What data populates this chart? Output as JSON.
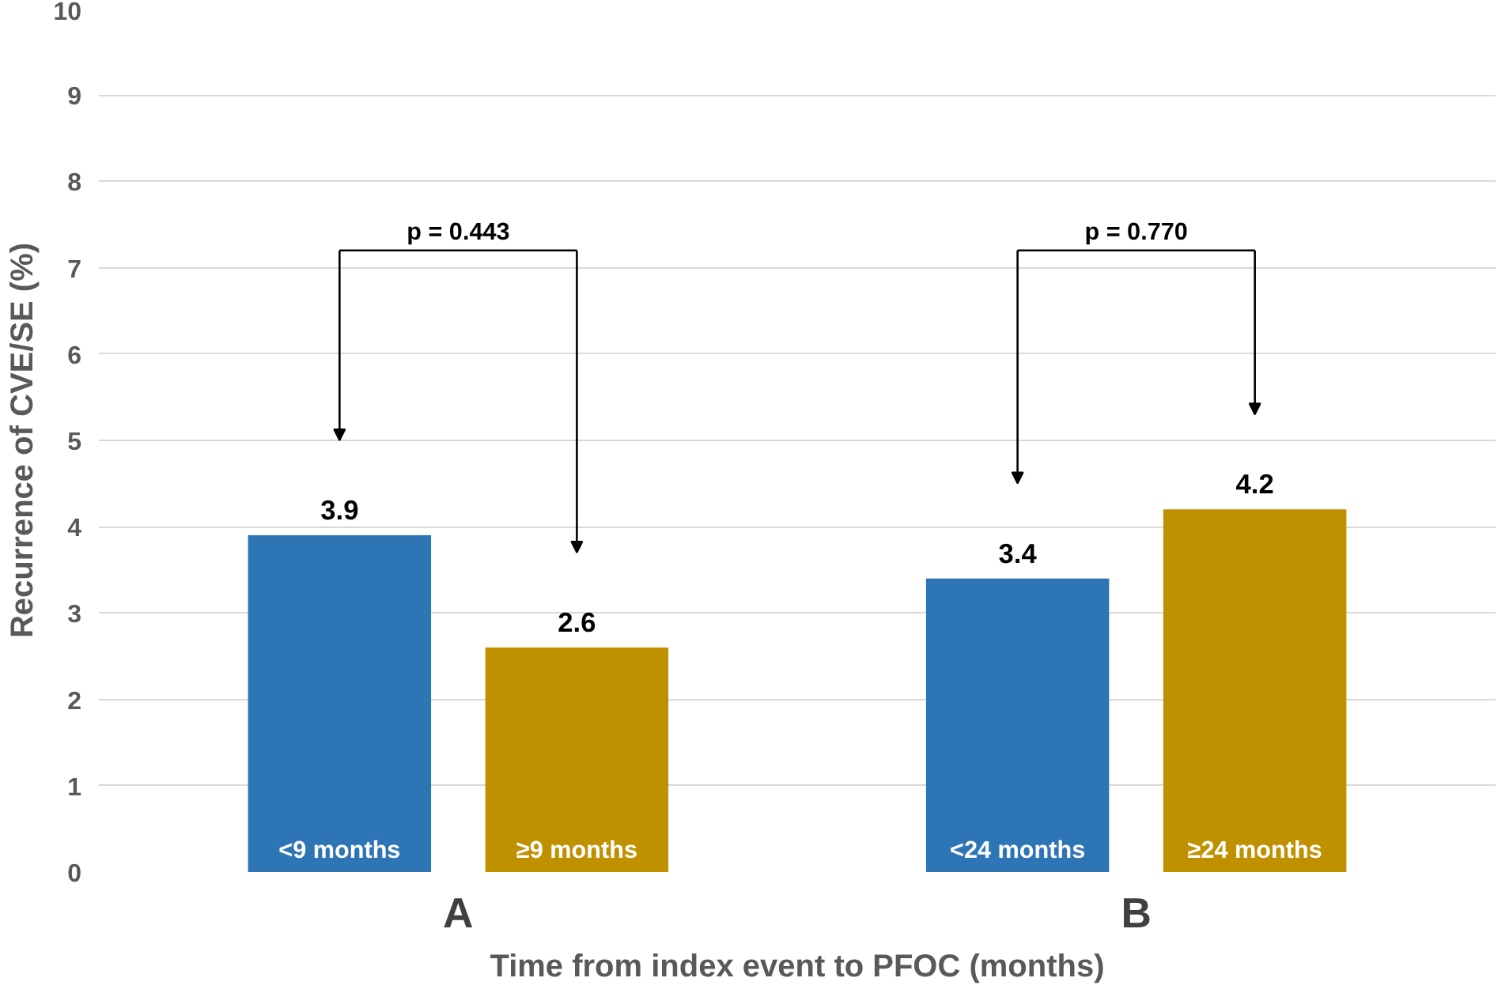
{
  "chart_data": {
    "type": "bar",
    "xlabel": "Time from index event to PFOC (months)",
    "ylabel": "Recurrence of CVE/SE (%)",
    "categories": [
      "A",
      "B"
    ],
    "series": [
      {
        "color": "#2e75b6",
        "values": [
          3.9,
          3.4
        ]
      },
      {
        "color": "#bf9000",
        "values": [
          2.6,
          4.2
        ]
      }
    ],
    "ylim": [
      0,
      10
    ],
    "yticks": [
      0,
      1,
      2,
      3,
      4,
      5,
      6,
      7,
      8,
      9,
      10
    ],
    "grid": "y",
    "data_labels": true,
    "annotations": [
      "<9 months",
      "≥9 months",
      "<24 months",
      "≥24 months",
      "p = 0.443",
      "p = 0.770"
    ]
  }
}
